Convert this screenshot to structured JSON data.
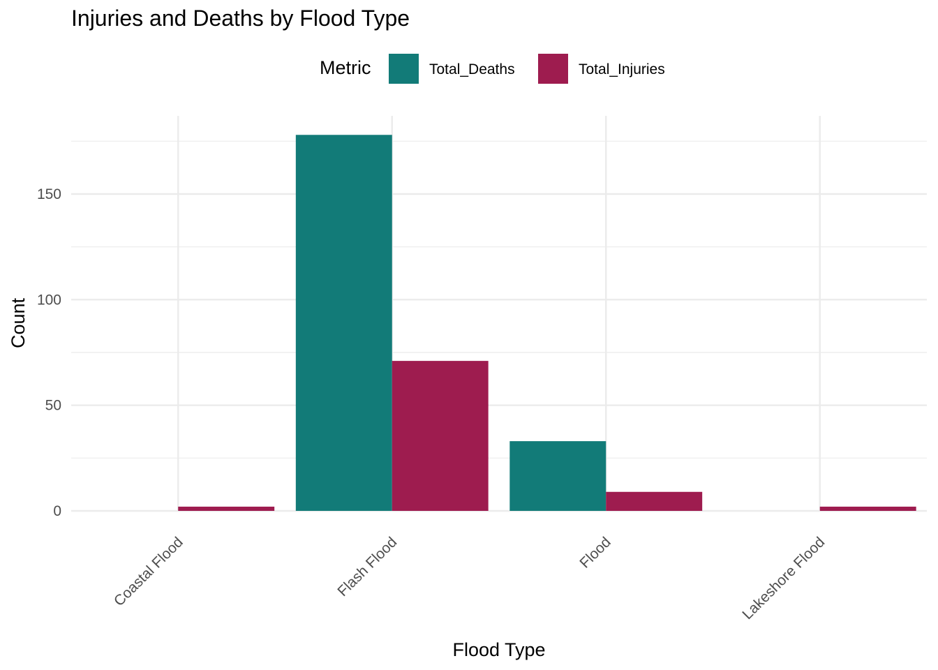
{
  "chart_data": {
    "type": "bar",
    "title": "Injuries and Deaths by Flood Type",
    "xlabel": "Flood Type",
    "ylabel": "Count",
    "categories": [
      "Coastal Flood",
      "Flash Flood",
      "Flood",
      "Lakeshore Flood"
    ],
    "series": [
      {
        "name": "Total_Deaths",
        "color": "#127B78",
        "values": [
          0,
          178,
          33,
          0
        ]
      },
      {
        "name": "Total_Injuries",
        "color": "#9E1C4F",
        "values": [
          2,
          71,
          9,
          2
        ]
      }
    ],
    "ylim": [
      0,
      182
    ],
    "yticks": [
      0,
      50,
      100,
      150
    ],
    "grid": true,
    "legend": {
      "title": "Metric",
      "position": "top"
    }
  }
}
